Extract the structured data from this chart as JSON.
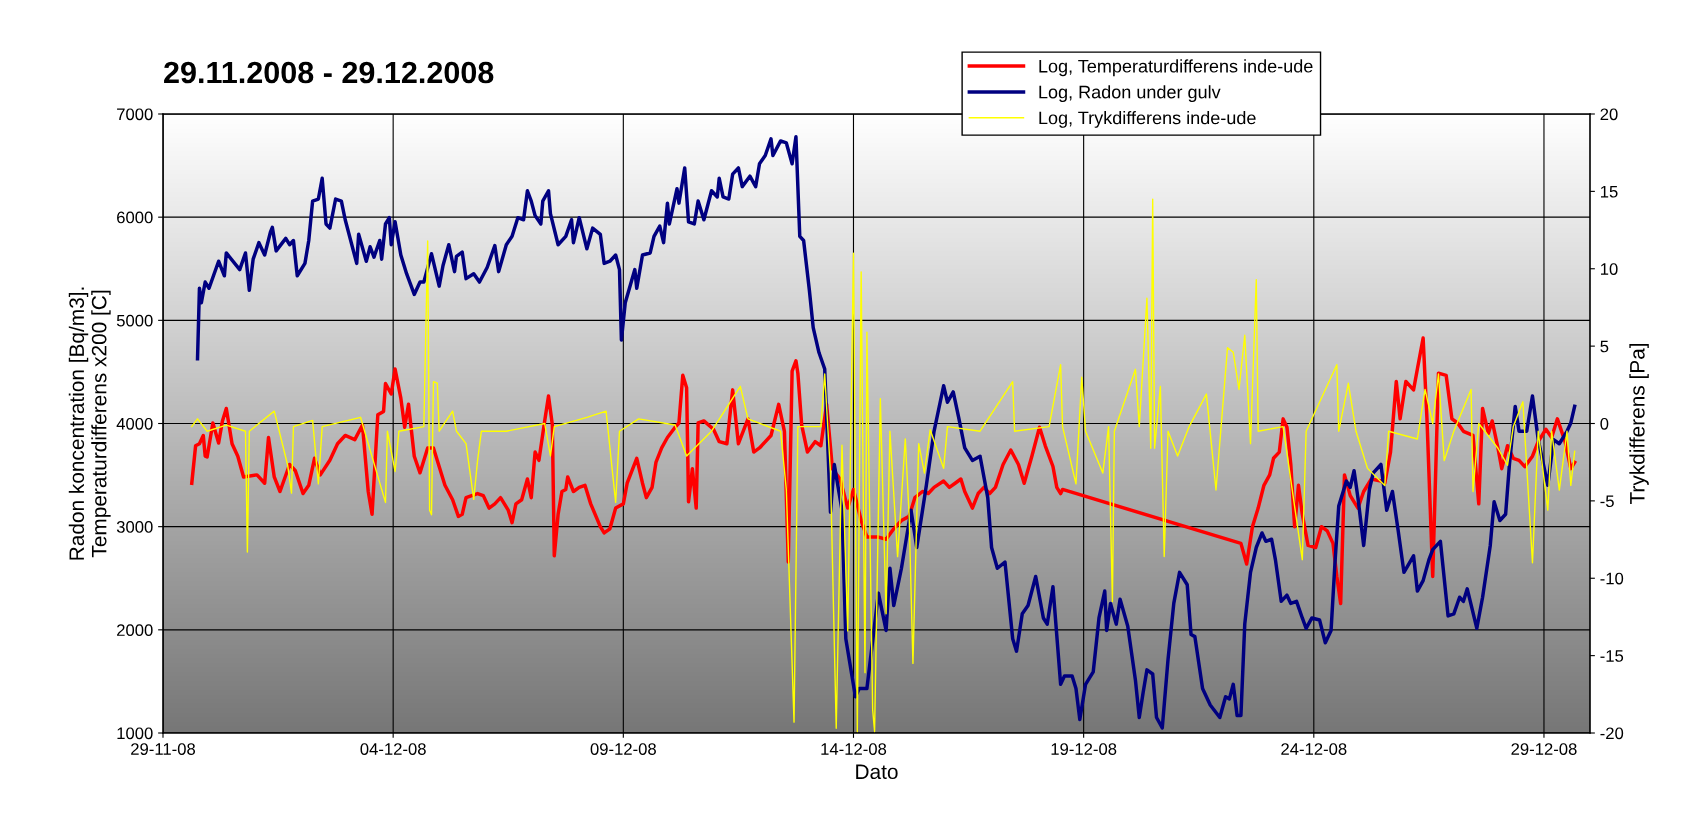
{
  "chart_data": {
    "type": "line",
    "title": "29.11.2008 - 29.12.2008",
    "xlabel": "Dato",
    "ylabel": "Radon koncentration [Bq/m3].\nTemperaturdifferens x200 [C]",
    "y2label": "Trykdifferens [Pa]",
    "xlim": [
      "2008-11-29",
      "2008-12-30"
    ],
    "xticks": [
      {
        "value": "2008-11-29",
        "label": "29-11-08"
      },
      {
        "value": "2008-12-04",
        "label": "04-12-08"
      },
      {
        "value": "2008-12-09",
        "label": "09-12-08"
      },
      {
        "value": "2008-12-14",
        "label": "14-12-08"
      },
      {
        "value": "2008-12-19",
        "label": "19-12-08"
      },
      {
        "value": "2008-12-24",
        "label": "24-12-08"
      },
      {
        "value": "2008-12-29",
        "label": "29-12-08"
      }
    ],
    "ylim": [
      1000,
      7000
    ],
    "yticks": [
      1000,
      2000,
      3000,
      4000,
      5000,
      6000,
      7000
    ],
    "y2lim": [
      -20,
      20
    ],
    "y2ticks": [
      -20,
      -15,
      -10,
      -5,
      0,
      5,
      10,
      15,
      20
    ],
    "grid": true,
    "legend": "top right",
    "marker": "none",
    "line_style": "solid",
    "series": [
      {
        "name": "Log, Temperaturdifferens inde-ude",
        "color": "#ff0000",
        "x": [
          "2008-11-29T15:00",
          "2008-11-29T17:00",
          "2008-11-29T19:00",
          "2008-11-29T21:00",
          "2008-11-29T22:00",
          "2008-11-29T23:00",
          "2008-11-30T02:00",
          "2008-11-30T05:00",
          "2008-11-30T07:00",
          "2008-11-30T09:00",
          "2008-11-30T12:00",
          "2008-11-30T15:00",
          "2008-11-30T18:00",
          "2008-12-01T01:00",
          "2008-12-01T05:00",
          "2008-12-01T07:00",
          "2008-12-01T10:00",
          "2008-12-01T13:00",
          "2008-12-01T18:00",
          "2008-12-01T21:00",
          "2008-12-02T01:00",
          "2008-12-02T04:00",
          "2008-12-02T07:00",
          "2008-12-02T10:00",
          "2008-12-02T15:00",
          "2008-12-02T19:00",
          "2008-12-02T23:00",
          "2008-12-03T04:00",
          "2008-12-03T08:00",
          "2008-12-03T11:00",
          "2008-12-03T13:00",
          "2008-12-03T16:00",
          "2008-12-03T19:00",
          "2008-12-03T20:00",
          "2008-12-03T23:00",
          "2008-12-04T01:00",
          "2008-12-04T04:00",
          "2008-12-04T06:00",
          "2008-12-04T08:00",
          "2008-12-04T11:00",
          "2008-12-04T14:00",
          "2008-12-04T18:00",
          "2008-12-04T21:00",
          "2008-12-05T03:00",
          "2008-12-05T07:00",
          "2008-12-05T10:00",
          "2008-12-05T12:00",
          "2008-12-05T14:00",
          "2008-12-05T20:00",
          "2008-12-05T23:00",
          "2008-12-06T02:00",
          "2008-12-06T05:00",
          "2008-12-06T08:00",
          "2008-12-06T12:00",
          "2008-12-06T14:00",
          "2008-12-06T16:00",
          "2008-12-06T19:00",
          "2008-12-06T22:00",
          "2008-12-07T00:00",
          "2008-12-07T02:00",
          "2008-12-07T04:00",
          "2008-12-07T07:00",
          "2008-12-07T09:00",
          "2008-12-07T11:00",
          "2008-12-07T12:00",
          "2008-12-07T14:00",
          "2008-12-07T16:00",
          "2008-12-07T18:00",
          "2008-12-07T19:00",
          "2008-12-07T22:00",
          "2008-12-08T01:00",
          "2008-12-08T04:00",
          "2008-12-08T07:00",
          "2008-12-08T12:00",
          "2008-12-08T14:00",
          "2008-12-08T17:00",
          "2008-12-08T20:00",
          "2008-12-09T00:00",
          "2008-12-09T02:00",
          "2008-12-09T07:00",
          "2008-12-09T10:00",
          "2008-12-09T12:00",
          "2008-12-09T15:00",
          "2008-12-09T17:00",
          "2008-12-09T20:00",
          "2008-12-09T23:00",
          "2008-12-10T03:00",
          "2008-12-10T05:00",
          "2008-12-10T07:00",
          "2008-12-10T09:00",
          "2008-12-10T10:00",
          "2008-12-10T12:00",
          "2008-12-10T14:00",
          "2008-12-10T15:00",
          "2008-12-10T18:00",
          "2008-12-10T23:00",
          "2008-12-11T02:00",
          "2008-12-11T06:00",
          "2008-12-11T09:00",
          "2008-12-11T12:00",
          "2008-12-11T17:00",
          "2008-12-11T20:00",
          "2008-12-11T23:00",
          "2008-12-12T05:00",
          "2008-12-12T09:00",
          "2008-12-12T12:00",
          "2008-12-12T14:00",
          "2008-12-12T16:00",
          "2008-12-12T18:00",
          "2008-12-12T19:00",
          "2008-12-12T21:00",
          "2008-12-13T00:00",
          "2008-12-13T04:00",
          "2008-12-13T07:00",
          "2008-12-13T10:00",
          "2008-12-13T13:00",
          "2008-12-13T17:00",
          "2008-12-13T21:00",
          "2008-12-14T00:00",
          "2008-12-14T04:00",
          "2008-12-14T07:00",
          "2008-12-14T13:00",
          "2008-12-14T17:00",
          "2008-12-14T21:00",
          "2008-12-15T01:00",
          "2008-12-15T05:00",
          "2008-12-15T08:00",
          "2008-12-15T12:00",
          "2008-12-15T15:00",
          "2008-12-15T18:00",
          "2008-12-15T23:00",
          "2008-12-16T02:00",
          "2008-12-16T05:00",
          "2008-12-16T08:00",
          "2008-12-16T10:00",
          "2008-12-16T14:00",
          "2008-12-16T17:00",
          "2008-12-16T20:00",
          "2008-12-16T23:00",
          "2008-12-17T02:00",
          "2008-12-17T06:00",
          "2008-12-17T10:00",
          "2008-12-17T14:00",
          "2008-12-17T17:00",
          "2008-12-17T21:00",
          "2008-12-18T01:00",
          "2008-12-18T04:00",
          "2008-12-18T08:00",
          "2008-12-18T10:00",
          "2008-12-18T12:00",
          "2008-12-18T13:00",
          "2008-12-22T10:00",
          "2008-12-22T13:00",
          "2008-12-22T16:00",
          "2008-12-22T19:00",
          "2008-12-22T22:00",
          "2008-12-23T01:00",
          "2008-12-23T03:00",
          "2008-12-23T06:00",
          "2008-12-23T08:00",
          "2008-12-23T10:00",
          "2008-12-23T12:00",
          "2008-12-23T14:00",
          "2008-12-23T16:00",
          "2008-12-23T18:00",
          "2008-12-23T21:00",
          "2008-12-24T01:00",
          "2008-12-24T04:00",
          "2008-12-24T07:00",
          "2008-12-24T10:00",
          "2008-12-24T12:00",
          "2008-12-24T14:00",
          "2008-12-24T16:00",
          "2008-12-24T19:00",
          "2008-12-24T23:00",
          "2008-12-25T02:00",
          "2008-12-25T06:00",
          "2008-12-25T11:00",
          "2008-12-25T13:00",
          "2008-12-25T16:00",
          "2008-12-25T19:00",
          "2008-12-25T21:00",
          "2008-12-26T00:00",
          "2008-12-26T04:00",
          "2008-12-26T06:00",
          "2008-12-26T09:00",
          "2008-12-26T11:00",
          "2008-12-26T14:00",
          "2008-12-26T17:00",
          "2008-12-26T21:00",
          "2008-12-27T00:00",
          "2008-12-27T03:00",
          "2008-12-27T06:00",
          "2008-12-27T11:00",
          "2008-12-27T14:00",
          "2008-12-27T16:00",
          "2008-12-27T19:00",
          "2008-12-27T21:00",
          "2008-12-28T00:00",
          "2008-12-28T02:00",
          "2008-12-28T05:00",
          "2008-12-28T08:00",
          "2008-12-28T11:00",
          "2008-12-28T14:00",
          "2008-12-28T18:00",
          "2008-12-28T21:00",
          "2008-12-29T01:00",
          "2008-12-29T04:00",
          "2008-12-29T07:00",
          "2008-12-29T11:00",
          "2008-12-29T14:00",
          "2008-12-29T16:00"
        ],
        "values": [
          3421,
          3784,
          3804,
          3884,
          3683,
          3675,
          4005,
          3811,
          4025,
          4146,
          3804,
          3683,
          3482,
          3502,
          3421,
          3864,
          3482,
          3341,
          3603,
          3542,
          3321,
          3401,
          3663,
          3502,
          3643,
          3804,
          3884,
          3844,
          3985,
          3341,
          3120,
          4085,
          4117,
          4387,
          4286,
          4528,
          4246,
          3964,
          4186,
          3683,
          3522,
          3763,
          3763,
          3401,
          3261,
          3100,
          3120,
          3281,
          3321,
          3301,
          3180,
          3221,
          3281,
          3160,
          3039,
          3221,
          3261,
          3462,
          3281,
          3723,
          3643,
          4025,
          4266,
          3985,
          2718,
          3120,
          3341,
          3361,
          3482,
          3341,
          3381,
          3401,
          3221,
          3000,
          2939,
          2979,
          3180,
          3221,
          3421,
          3663,
          3421,
          3281,
          3381,
          3623,
          3763,
          3864,
          3964,
          4005,
          4467,
          4347,
          3241,
          3562,
          3180,
          4005,
          4025,
          3944,
          3824,
          3804,
          4326,
          3804,
          4045,
          3723,
          3763,
          3884,
          4186,
          3924,
          2658,
          4507,
          4608,
          4488,
          3985,
          3723,
          3824,
          3784,
          4186,
          3562,
          3462,
          3180,
          3361,
          3060,
          2899,
          2899,
          2878,
          2979,
          3060,
          3100,
          3281,
          3341,
          3321,
          3381,
          3442,
          3381,
          3421,
          3462,
          3341,
          3180,
          3321,
          3381,
          3321,
          3381,
          3603,
          3743,
          3603,
          3421,
          3683,
          3964,
          3784,
          3583,
          3381,
          3321,
          3361,
          2838,
          2638,
          3000,
          3180,
          3401,
          3502,
          3663,
          3723,
          4045,
          3964,
          3603,
          3000,
          3401,
          3120,
          2818,
          2798,
          3000,
          2959,
          2838,
          2517,
          2256,
          3502,
          3301,
          3180,
          3341,
          3462,
          3442,
          3421,
          3723,
          4407,
          4045,
          4407,
          4326,
          4528,
          4829,
          4045,
          2517,
          4488,
          4467,
          4045,
          4005,
          3924,
          3884,
          3221,
          4146,
          3904,
          4025,
          3763,
          3562,
          3784,
          3663,
          3643,
          3582,
          3683,
          3824,
          3944,
          3864,
          4045,
          3824,
          3562,
          3623
        ]
      },
      {
        "name": "Log, Radon under gulv",
        "color": "#000080",
        "x": [
          "2008-11-29T18:00",
          "2008-11-29T19:00",
          "2008-11-29T20:00",
          "2008-11-29T22:00",
          "2008-11-30T00:00",
          "2008-11-30T05:00",
          "2008-11-30T08:00",
          "2008-11-30T09:00",
          "2008-11-30T16:00",
          "2008-11-30T19:00",
          "2008-11-30T21:00",
          "2008-11-30T23:00",
          "2008-12-01T02:00",
          "2008-12-01T05:00",
          "2008-12-01T08:00",
          "2008-12-01T09:00",
          "2008-12-01T11:00",
          "2008-12-01T16:00",
          "2008-12-01T18:00",
          "2008-12-01T20:00",
          "2008-12-01T22:00",
          "2008-12-02T02:00",
          "2008-12-02T04:00",
          "2008-12-02T06:00",
          "2008-12-02T09:00",
          "2008-12-02T11:00",
          "2008-12-02T13:00",
          "2008-12-02T15:00",
          "2008-12-02T18:00",
          "2008-12-02T21:00",
          "2008-12-02T23:00",
          "2008-12-03T05:00",
          "2008-12-03T06:00",
          "2008-12-03T10:00",
          "2008-12-03T12:00",
          "2008-12-03T14:00",
          "2008-12-03T17:00",
          "2008-12-03T18:00",
          "2008-12-03T20:00",
          "2008-12-03T22:00",
          "2008-12-03T23:00",
          "2008-12-04T01:00",
          "2008-12-04T04:00",
          "2008-12-04T07:00",
          "2008-12-04T11:00",
          "2008-12-04T14:00",
          "2008-12-04T16:00",
          "2008-12-04T20:00",
          "2008-12-05T00:00",
          "2008-12-05T02:00",
          "2008-12-05T05:00",
          "2008-12-05T08:00",
          "2008-12-05T09:00",
          "2008-12-05T12:00",
          "2008-12-05T14:00",
          "2008-12-05T18:00",
          "2008-12-05T21:00",
          "2008-12-06T01:00",
          "2008-12-06T05:00",
          "2008-12-06T07:00",
          "2008-12-06T11:00",
          "2008-12-06T14:00",
          "2008-12-06T17:00",
          "2008-12-06T20:00",
          "2008-12-06T22:00",
          "2008-12-07T00:00",
          "2008-12-07T02:00",
          "2008-12-07T05:00",
          "2008-12-07T06:00",
          "2008-12-07T09:00",
          "2008-12-07T10:00",
          "2008-12-07T14:00",
          "2008-12-07T18:00",
          "2008-12-07T21:00",
          "2008-12-07T22:00",
          "2008-12-08T01:00",
          "2008-12-08T05:00",
          "2008-12-08T08:00",
          "2008-12-08T12:00",
          "2008-12-08T14:00",
          "2008-12-08T17:00",
          "2008-12-08T20:00",
          "2008-12-08T22:00",
          "2008-12-08T23:00",
          "2008-12-09T01:00",
          "2008-12-09T06:00",
          "2008-12-09T07:00",
          "2008-12-09T10:00",
          "2008-12-09T14:00",
          "2008-12-09T16:00",
          "2008-12-09T19:00",
          "2008-12-09T21:00",
          "2008-12-09T23:00",
          "2008-12-10T00:00",
          "2008-12-10T04:00",
          "2008-12-10T05:00",
          "2008-12-10T08:00",
          "2008-12-10T10:00",
          "2008-12-10T13:00",
          "2008-12-10T15:00",
          "2008-12-10T18:00",
          "2008-12-10T22:00",
          "2008-12-11T01:00",
          "2008-12-11T02:00",
          "2008-12-11T04:00",
          "2008-12-11T07:00",
          "2008-12-11T09:00",
          "2008-12-11T12:00",
          "2008-12-11T14:00",
          "2008-12-11T18:00",
          "2008-12-11T21:00",
          "2008-12-11T23:00",
          "2008-12-12T02:00",
          "2008-12-12T05:00",
          "2008-12-12T06:00",
          "2008-12-12T10:00",
          "2008-12-12T13:00",
          "2008-12-12T16:00",
          "2008-12-12T18:00",
          "2008-12-12T20:00",
          "2008-12-12T22:00",
          "2008-12-13T01:00",
          "2008-12-13T03:00",
          "2008-12-13T06:00",
          "2008-12-13T09:00",
          "2008-12-13T12:00",
          "2008-12-13T14:00",
          "2008-12-13T18:00",
          "2008-12-13T20:00",
          "2008-12-14T01:00",
          "2008-12-14T03:00",
          "2008-12-14T07:00",
          "2008-12-14T13:00",
          "2008-12-14T17:00",
          "2008-12-14T19:00",
          "2008-12-14T21:00",
          "2008-12-15T01:00",
          "2008-12-15T06:00",
          "2008-12-15T09:00",
          "2008-12-15T14:00",
          "2008-12-15T18:00",
          "2008-12-15T23:00",
          "2008-12-16T01:00",
          "2008-12-16T04:00",
          "2008-12-16T07:00",
          "2008-12-16T10:00",
          "2008-12-16T14:00",
          "2008-12-16T18:00",
          "2008-12-16T22:00",
          "2008-12-17T00:00",
          "2008-12-17T03:00",
          "2008-12-17T07:00",
          "2008-12-17T11:00",
          "2008-12-17T13:00",
          "2008-12-17T16:00",
          "2008-12-17T19:00",
          "2008-12-17T23:00",
          "2008-12-18T03:00",
          "2008-12-18T05:00",
          "2008-12-18T08:00",
          "2008-12-18T12:00",
          "2008-12-18T14:00",
          "2008-12-18T18:00",
          "2008-12-18T20:00",
          "2008-12-18T22:00",
          "2008-12-19T01:00",
          "2008-12-19T05:00",
          "2008-12-19T08:00",
          "2008-12-19T11:00",
          "2008-12-19T12:00",
          "2008-12-19T14:00",
          "2008-12-19T17:00",
          "2008-12-19T19:00",
          "2008-12-19T23:00",
          "2008-12-20T03:00",
          "2008-12-20T05:00",
          "2008-12-20T07:00",
          "2008-12-20T09:00",
          "2008-12-20T12:00",
          "2008-12-20T14:00",
          "2008-12-20T17:00",
          "2008-12-20T20:00",
          "2008-12-20T23:00",
          "2008-12-21T02:00",
          "2008-12-21T06:00",
          "2008-12-21T08:00",
          "2008-12-21T10:00",
          "2008-12-21T14:00",
          "2008-12-21T18:00",
          "2008-12-21T23:00",
          "2008-12-22T02:00",
          "2008-12-22T04:00",
          "2008-12-22T06:00",
          "2008-12-22T08:00",
          "2008-12-22T10:00",
          "2008-12-22T12:00",
          "2008-12-22T15:00",
          "2008-12-22T18:00",
          "2008-12-22T21:00",
          "2008-12-22T23:00",
          "2008-12-23T02:00",
          "2008-12-23T04:00",
          "2008-12-23T07:00",
          "2008-12-23T10:00",
          "2008-12-23T12:00",
          "2008-12-23T15:00",
          "2008-12-23T18:00",
          "2008-12-23T20:00",
          "2008-12-23T23:00",
          "2008-12-24T03:00",
          "2008-12-24T06:00",
          "2008-12-24T09:00",
          "2008-12-24T11:00",
          "2008-12-24T13:00",
          "2008-12-24T17:00",
          "2008-12-24T19:00",
          "2008-12-24T21:00",
          "2008-12-24T23:00",
          "2008-12-25T02:00",
          "2008-12-25T05:00",
          "2008-12-25T07:00",
          "2008-12-25T11:00",
          "2008-12-25T14:00",
          "2008-12-25T17:00",
          "2008-12-25T20:00",
          "2008-12-25T23:00",
          "2008-12-26T04:00",
          "2008-12-26T06:00",
          "2008-12-26T09:00",
          "2008-12-26T12:00",
          "2008-12-26T14:00",
          "2008-12-26T18:00",
          "2008-12-26T22:00",
          "2008-12-27T01:00",
          "2008-12-27T04:00",
          "2008-12-27T06:00",
          "2008-12-27T08:00",
          "2008-12-27T13:00",
          "2008-12-27T16:00",
          "2008-12-27T20:00",
          "2008-12-27T22:00",
          "2008-12-28T01:00",
          "2008-12-28T04:00",
          "2008-12-28T06:00",
          "2008-12-28T09:00",
          "2008-12-28T11:00",
          "2008-12-28T15:00",
          "2008-12-28T18:00",
          "2008-12-28T21:00",
          "2008-12-29T02:00",
          "2008-12-29T05:00",
          "2008-12-29T08:00",
          "2008-12-29T12:00",
          "2008-12-29T14:00",
          "2008-12-29T16:00"
        ],
        "values": [
          4628,
          5311,
          5170,
          5371,
          5311,
          5573,
          5432,
          5653,
          5492,
          5653,
          5291,
          5593,
          5753,
          5633,
          5854,
          5902,
          5673,
          5794,
          5733,
          5774,
          5432,
          5552,
          5774,
          6156,
          6176,
          6377,
          5934,
          5894,
          6176,
          6156,
          5975,
          5552,
          5834,
          5573,
          5713,
          5613,
          5774,
          5593,
          5934,
          5995,
          5733,
          5955,
          5633,
          5452,
          5251,
          5371,
          5371,
          5645,
          5331,
          5532,
          5733,
          5472,
          5620,
          5662,
          5404,
          5452,
          5371,
          5512,
          5725,
          5472,
          5733,
          5814,
          5995,
          5975,
          6256,
          6156,
          6015,
          5934,
          6156,
          6256,
          6035,
          5733,
          5814,
          5975,
          5753,
          5995,
          5693,
          5894,
          5834,
          5552,
          5573,
          5633,
          5492,
          4809,
          5170,
          5492,
          5311,
          5633,
          5653,
          5814,
          5914,
          5753,
          6136,
          5934,
          6276,
          6136,
          6477,
          5955,
          5934,
          6156,
          5975,
          6256,
          6196,
          6377,
          6196,
          6176,
          6417,
          6477,
          6296,
          6397,
          6296,
          6518,
          6598,
          6759,
          6598,
          6739,
          6719,
          6518,
          6779,
          5814,
          5774,
          5291,
          4929,
          4688,
          4528,
          3140,
          3603,
          3160,
          1914,
          1351,
          1432,
          1432,
          2356,
          1994,
          2597,
          2236,
          2597,
          3160,
          2798,
          3401,
          3924,
          4366,
          4206,
          4306,
          4045,
          3763,
          3642,
          3683,
          3281,
          2798,
          2597,
          2657,
          1914,
          1793,
          2155,
          2236,
          2517,
          2115,
          2055,
          2417,
          1472,
          1552,
          1552,
          1432,
          1130,
          1472,
          1592,
          2115,
          2376,
          1994,
          2256,
          2055,
          2296,
          2035,
          1512,
          1150,
          1391,
          1612,
          1572,
          1150,
          1049,
          1713,
          2256,
          2557,
          2437,
          1954,
          1934,
          1432,
          1271,
          1150,
          1351,
          1331,
          1472,
          1170,
          1170,
          2055,
          2557,
          2798,
          2939,
          2858,
          2878,
          2678,
          2276,
          2336,
          2256,
          2276,
          2115,
          2015,
          2115,
          2095,
          1874,
          1994,
          2638,
          3201,
          3442,
          3382,
          3543,
          3281,
          2818,
          3362,
          3522,
          3603,
          3160,
          3341,
          2960,
          2557,
          2718,
          2376,
          2477,
          2678,
          2778,
          2858,
          2135,
          2155,
          2316,
          2276,
          2397,
          2015,
          2316,
          2818,
          3241,
          3060,
          3120,
          3603,
          4166,
          3924,
          3924,
          4266,
          3844,
          3401,
          3844,
          3804,
          3924,
          4005,
          4166
        ]
      },
      {
        "name": "Log, Trykdifferens inde-ude",
        "color": "#ffff00",
        "axis": "y2",
        "x": [
          "2008-11-29T15:00",
          "2008-11-29T18:00",
          "2008-11-29T23:00",
          "2008-11-30T09:00",
          "2008-11-30T19:00",
          "2008-11-30T20:00",
          "2008-11-30T21:00",
          "2008-12-01T10:00",
          "2008-12-01T17:00",
          "2008-12-01T19:00",
          "2008-12-01T20:00",
          "2008-12-02T06:00",
          "2008-12-02T09:00",
          "2008-12-02T11:00",
          "2008-12-03T07:00",
          "2008-12-03T11:00",
          "2008-12-03T20:00",
          "2008-12-03T21:00",
          "2008-12-04T01:00",
          "2008-12-04T03:00",
          "2008-12-04T16:00",
          "2008-12-04T18:00",
          "2008-12-04T19:00",
          "2008-12-04T20:00",
          "2008-12-04T21:00",
          "2008-12-04T23:00",
          "2008-12-05T00:00",
          "2008-12-05T07:00",
          "2008-12-05T09:00",
          "2008-12-05T14:00",
          "2008-12-05T18:00",
          "2008-12-05T20:00",
          "2008-12-05T22:00",
          "2008-12-06T11:00",
          "2008-12-07T07:00",
          "2008-12-07T10:00",
          "2008-12-07T12:00",
          "2008-12-08T05:00",
          "2008-12-08T15:00",
          "2008-12-08T20:00",
          "2008-12-08T22:00",
          "2008-12-09T08:00",
          "2008-12-10T03:00",
          "2008-12-10T09:00",
          "2008-12-10T22:00",
          "2008-12-11T13:00",
          "2008-12-11T17:00",
          "2008-12-12T10:00",
          "2008-12-12T13:00",
          "2008-12-12T17:00",
          "2008-12-12T19:00",
          "2008-12-13T07:00",
          "2008-12-13T09:00",
          "2008-12-13T12:00",
          "2008-12-13T15:00",
          "2008-12-13T18:00",
          "2008-12-13T21:00",
          "2008-12-14T00:00",
          "2008-12-14T02:00",
          "2008-12-14T04:00",
          "2008-12-14T06:00",
          "2008-12-14T07:00",
          "2008-12-14T10:00",
          "2008-12-14T11:00",
          "2008-12-14T14:00",
          "2008-12-14T17:00",
          "2008-12-14T19:00",
          "2008-12-14T23:00",
          "2008-12-15T03:00",
          "2008-12-15T05:00",
          "2008-12-15T07:00",
          "2008-12-15T10:00",
          "2008-12-15T13:00",
          "2008-12-15T16:00",
          "2008-12-15T23:00",
          "2008-12-16T01:00",
          "2008-12-16T18:00",
          "2008-12-17T11:00",
          "2008-12-17T12:00",
          "2008-12-18T06:00",
          "2008-12-18T12:00",
          "2008-12-18T13:00",
          "2008-12-18T20:00",
          "2008-12-18T23:00",
          "2008-12-19T01:00",
          "2008-12-19T10:00",
          "2008-12-19T13:00",
          "2008-12-19T15:00",
          "2008-12-19T16:00",
          "2008-12-20T03:00",
          "2008-12-20T05:00",
          "2008-12-20T09:00",
          "2008-12-20T11:00",
          "2008-12-20T12:00",
          "2008-12-20T13:00",
          "2008-12-20T16:00",
          "2008-12-20T18:00",
          "2008-12-20T20:00",
          "2008-12-21T01:00",
          "2008-12-21T07:00",
          "2008-12-21T16:00",
          "2008-12-21T21:00",
          "2008-12-22T03:00",
          "2008-12-22T06:00",
          "2008-12-22T09:00",
          "2008-12-22T12:00",
          "2008-12-22T15:00",
          "2008-12-22T18:00",
          "2008-12-22T19:00",
          "2008-12-23T08:00",
          "2008-12-23T18:00",
          "2008-12-23T20:00",
          "2008-12-24T12:00",
          "2008-12-24T13:00",
          "2008-12-24T18:00",
          "2008-12-24T22:00",
          "2008-12-25T04:00",
          "2008-12-25T13:00",
          "2008-12-25T15:00",
          "2008-12-26T06:00",
          "2008-12-26T10:00",
          "2008-12-26T14:00",
          "2008-12-26T17:00",
          "2008-12-26T20:00",
          "2008-12-27T01:00",
          "2008-12-27T10:00",
          "2008-12-27T11:00",
          "2008-12-27T14:00",
          "2008-12-28T00:00",
          "2008-12-28T05:00",
          "2008-12-28T08:00",
          "2008-12-28T13:00",
          "2008-12-28T18:00",
          "2008-12-28T21:00",
          "2008-12-29T02:00",
          "2008-12-29T04:00",
          "2008-12-29T08:00",
          "2008-12-29T12:00",
          "2008-12-29T14:00",
          "2008-12-29T16:00"
        ],
        "values": [
          -0.2,
          0.3,
          -0.5,
          -0.1,
          -0.5,
          -8.3,
          -0.5,
          0.8,
          -2.7,
          -4.5,
          -0.2,
          0.2,
          -3.9,
          -0.2,
          0.4,
          -1.3,
          -5.1,
          -0.5,
          -3.1,
          -0.5,
          -0.2,
          11.8,
          -5.6,
          -5.9,
          2.7,
          2.6,
          -0.5,
          0.8,
          -0.5,
          -1.3,
          -4.9,
          -2.4,
          -0.5,
          -0.5,
          0.0,
          -2.1,
          -0.2,
          0.4,
          0.8,
          -5.1,
          -0.5,
          0.3,
          -0.1,
          -2.1,
          -0.5,
          2.4,
          0.3,
          -0.5,
          -4.3,
          -19.3,
          -0.2,
          -0.2,
          3.2,
          -3.2,
          -19.7,
          -1.4,
          -13.4,
          11.0,
          -19.9,
          9.8,
          -16.1,
          5.9,
          -18.5,
          -19.9,
          1.6,
          -12.3,
          -0.5,
          -8.6,
          -1.0,
          -5.9,
          -15.5,
          -1.3,
          -3.2,
          -0.4,
          -2.9,
          -0.2,
          -0.5,
          2.7,
          -0.5,
          -0.2,
          3.8,
          -0.2,
          -3.9,
          3.0,
          -0.5,
          -3.2,
          -0.2,
          -11.5,
          -0.5,
          3.5,
          -0.2,
          8.1,
          -1.6,
          14.5,
          -1.6,
          2.4,
          -8.6,
          -0.5,
          -2.1,
          -0.2,
          1.9,
          -4.3,
          4.9,
          4.6,
          2.2,
          5.7,
          -1.3,
          9.3,
          -0.5,
          -0.2,
          -8.8,
          -0.5,
          3.8,
          -0.5,
          2.6,
          -0.5,
          -2.9,
          -4.0,
          -0.5,
          -1.0,
          2.2,
          0.0,
          3.2,
          -2.4,
          -0.5,
          2.2,
          -4.4,
          0.0,
          -1.6,
          -2.7,
          -0.2,
          1.4,
          -9.0,
          -0.5,
          -5.6,
          -0.5,
          -4.3,
          -0.5,
          -4.0,
          -1.8
        ]
      }
    ]
  }
}
